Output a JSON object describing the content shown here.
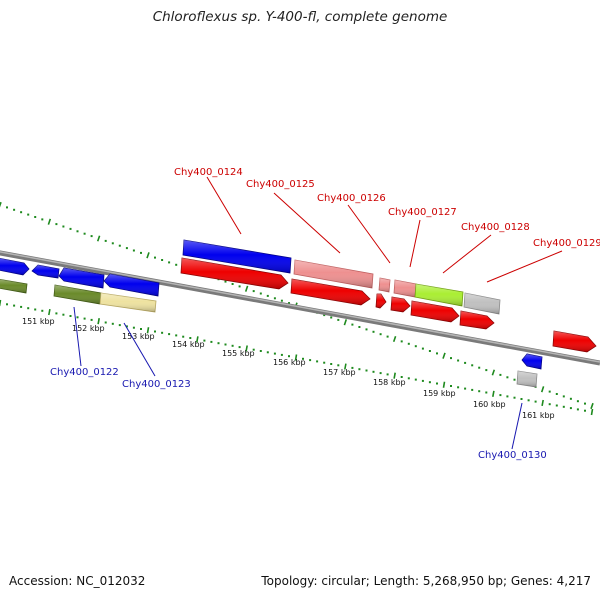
{
  "title": "Chloroflexus sp. Y-400-fl, complete genome",
  "footer": {
    "accession": "Accession: NC_012032",
    "topology": "Topology: circular; Length: 5,268,950 bp; Genes: 4,217"
  },
  "colors": {
    "backbone": "#8a8a8a",
    "tick_green": "#1e8a1e",
    "label_red": "#cc0000",
    "label_blue": "#1818b0",
    "gene_blue": "#0000ee",
    "gene_red": "#ee0000",
    "gene_pink": "#ee9090",
    "gene_lime": "#aaee33",
    "gene_gray": "#c0c0c0",
    "gene_olive": "#6a8a2a",
    "gene_khaki": "#eee2a0"
  },
  "ticks": [
    "151 kbp",
    "152 kbp",
    "153 kbp",
    "154 kbp",
    "155 kbp",
    "156 kbp",
    "157 kbp",
    "158 kbp",
    "159 kbp",
    "160 kbp",
    "161 kbp"
  ],
  "top_labels": [
    "Chy400_0124",
    "Chy400_0125",
    "Chy400_0126",
    "Chy400_0127",
    "Chy400_0128",
    "Chy400_0129"
  ],
  "bottom_labels": [
    "Chy400_0122",
    "Chy400_0123",
    "Chy400_0130"
  ]
}
